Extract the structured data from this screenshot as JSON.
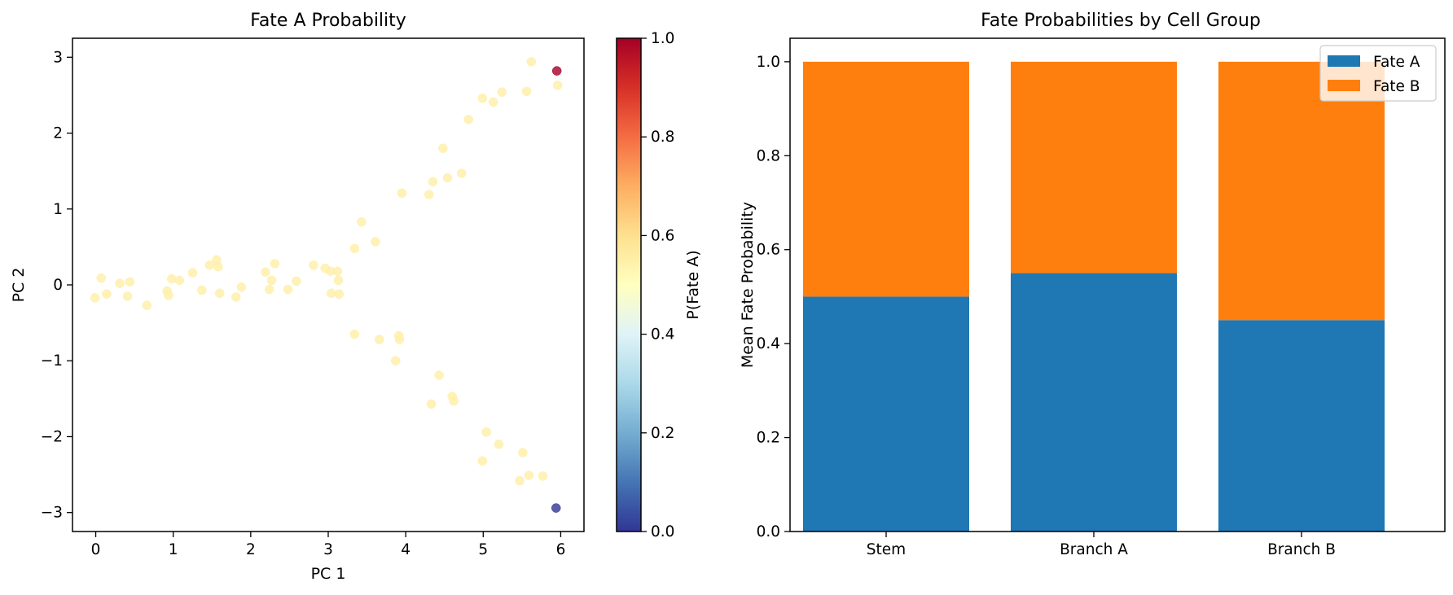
{
  "chart_data": [
    {
      "type": "scatter",
      "title": "Fate A Probability",
      "xlabel": "PC 1",
      "ylabel": "PC 2",
      "xlim": [
        -0.3,
        6.3
      ],
      "ylim": [
        -3.25,
        3.25
      ],
      "xticks": [
        0,
        1,
        2,
        3,
        4,
        5,
        6
      ],
      "yticks": [
        -3,
        -2,
        -1,
        0,
        1,
        2,
        3
      ],
      "xtick_labels": [
        "0",
        "1",
        "2",
        "3",
        "4",
        "5",
        "6"
      ],
      "ytick_labels": [
        "−3",
        "−2",
        "−1",
        "0",
        "1",
        "2",
        "3"
      ],
      "colorbar": {
        "label": "P(Fate A)",
        "range": [
          0.0,
          1.0
        ],
        "ticks": [
          0.0,
          0.2,
          0.4,
          0.6,
          0.8,
          1.0
        ],
        "tick_labels": [
          "0.0",
          "0.2",
          "0.4",
          "0.6",
          "0.8",
          "1.0"
        ],
        "colormap": "RdYlBu_r"
      },
      "points": [
        {
          "x": -0.01,
          "y": -0.17,
          "p": 0.55
        },
        {
          "x": 0.07,
          "y": 0.09,
          "p": 0.55
        },
        {
          "x": 0.14,
          "y": -0.12,
          "p": 0.55
        },
        {
          "x": 0.31,
          "y": 0.02,
          "p": 0.55
        },
        {
          "x": 0.41,
          "y": -0.15,
          "p": 0.55
        },
        {
          "x": 0.44,
          "y": 0.04,
          "p": 0.55
        },
        {
          "x": 0.66,
          "y": -0.27,
          "p": 0.55
        },
        {
          "x": 0.92,
          "y": -0.08,
          "p": 0.55
        },
        {
          "x": 0.94,
          "y": -0.14,
          "p": 0.55
        },
        {
          "x": 0.98,
          "y": 0.08,
          "p": 0.55
        },
        {
          "x": 1.08,
          "y": 0.06,
          "p": 0.55
        },
        {
          "x": 1.25,
          "y": 0.16,
          "p": 0.55
        },
        {
          "x": 1.37,
          "y": -0.07,
          "p": 0.55
        },
        {
          "x": 1.47,
          "y": 0.26,
          "p": 0.55
        },
        {
          "x": 1.56,
          "y": 0.33,
          "p": 0.55
        },
        {
          "x": 1.58,
          "y": 0.24,
          "p": 0.55
        },
        {
          "x": 1.6,
          "y": -0.11,
          "p": 0.55
        },
        {
          "x": 1.81,
          "y": -0.16,
          "p": 0.55
        },
        {
          "x": 1.88,
          "y": -0.03,
          "p": 0.55
        },
        {
          "x": 2.19,
          "y": 0.17,
          "p": 0.55
        },
        {
          "x": 2.24,
          "y": -0.06,
          "p": 0.55
        },
        {
          "x": 2.27,
          "y": 0.06,
          "p": 0.55
        },
        {
          "x": 2.31,
          "y": 0.28,
          "p": 0.55
        },
        {
          "x": 2.48,
          "y": -0.06,
          "p": 0.55
        },
        {
          "x": 2.59,
          "y": 0.05,
          "p": 0.55
        },
        {
          "x": 2.81,
          "y": 0.26,
          "p": 0.55
        },
        {
          "x": 2.96,
          "y": 0.22,
          "p": 0.55
        },
        {
          "x": 3.03,
          "y": 0.18,
          "p": 0.55
        },
        {
          "x": 3.04,
          "y": -0.11,
          "p": 0.55
        },
        {
          "x": 3.12,
          "y": 0.18,
          "p": 0.55
        },
        {
          "x": 3.13,
          "y": 0.06,
          "p": 0.55
        },
        {
          "x": 3.14,
          "y": -0.12,
          "p": 0.55
        },
        {
          "x": 3.34,
          "y": 0.48,
          "p": 0.55
        },
        {
          "x": 3.43,
          "y": 0.83,
          "p": 0.55
        },
        {
          "x": 3.61,
          "y": 0.57,
          "p": 0.55
        },
        {
          "x": 3.95,
          "y": 1.21,
          "p": 0.55
        },
        {
          "x": 4.3,
          "y": 1.19,
          "p": 0.55
        },
        {
          "x": 4.35,
          "y": 1.36,
          "p": 0.55
        },
        {
          "x": 4.48,
          "y": 1.8,
          "p": 0.55
        },
        {
          "x": 4.54,
          "y": 1.41,
          "p": 0.55
        },
        {
          "x": 4.72,
          "y": 1.47,
          "p": 0.55
        },
        {
          "x": 4.81,
          "y": 2.18,
          "p": 0.55
        },
        {
          "x": 4.99,
          "y": 2.46,
          "p": 0.55
        },
        {
          "x": 5.13,
          "y": 2.41,
          "p": 0.55
        },
        {
          "x": 5.24,
          "y": 2.54,
          "p": 0.55
        },
        {
          "x": 5.56,
          "y": 2.55,
          "p": 0.55
        },
        {
          "x": 5.62,
          "y": 2.94,
          "p": 0.55
        },
        {
          "x": 5.96,
          "y": 2.63,
          "p": 0.55
        },
        {
          "x": 5.95,
          "y": 2.82,
          "p": 1.0
        },
        {
          "x": 3.34,
          "y": -0.65,
          "p": 0.55
        },
        {
          "x": 3.66,
          "y": -0.72,
          "p": 0.55
        },
        {
          "x": 3.87,
          "y": -1.0,
          "p": 0.55
        },
        {
          "x": 3.91,
          "y": -0.67,
          "p": 0.55
        },
        {
          "x": 3.92,
          "y": -0.72,
          "p": 0.55
        },
        {
          "x": 4.33,
          "y": -1.57,
          "p": 0.55
        },
        {
          "x": 4.43,
          "y": -1.19,
          "p": 0.55
        },
        {
          "x": 4.6,
          "y": -1.47,
          "p": 0.55
        },
        {
          "x": 4.62,
          "y": -1.53,
          "p": 0.55
        },
        {
          "x": 4.99,
          "y": -2.32,
          "p": 0.55
        },
        {
          "x": 5.04,
          "y": -1.94,
          "p": 0.55
        },
        {
          "x": 5.2,
          "y": -2.1,
          "p": 0.55
        },
        {
          "x": 5.47,
          "y": -2.58,
          "p": 0.55
        },
        {
          "x": 5.51,
          "y": -2.21,
          "p": 0.55
        },
        {
          "x": 5.59,
          "y": -2.51,
          "p": 0.55
        },
        {
          "x": 5.77,
          "y": -2.52,
          "p": 0.55
        },
        {
          "x": 5.94,
          "y": -2.94,
          "p": 0.0
        }
      ]
    },
    {
      "type": "bar",
      "stacked": true,
      "title": "Fate Probabilities by Cell Group",
      "xlabel": "",
      "ylabel": "Mean Fate Probability",
      "ylim": [
        0,
        1.05
      ],
      "yticks": [
        0,
        0.2,
        0.4,
        0.6,
        0.8,
        1.0
      ],
      "ytick_labels": [
        "0.0",
        "0.2",
        "0.4",
        "0.6",
        "0.8",
        "1.0"
      ],
      "categories": [
        "Stem",
        "Branch A",
        "Branch B"
      ],
      "series": [
        {
          "name": "Fate A",
          "color": "#1f77b4",
          "values": [
            0.5,
            0.55,
            0.45
          ]
        },
        {
          "name": "Fate B",
          "color": "#ff7f0e",
          "values": [
            0.5,
            0.45,
            0.55
          ]
        }
      ],
      "legend_position": "top-right"
    }
  ]
}
